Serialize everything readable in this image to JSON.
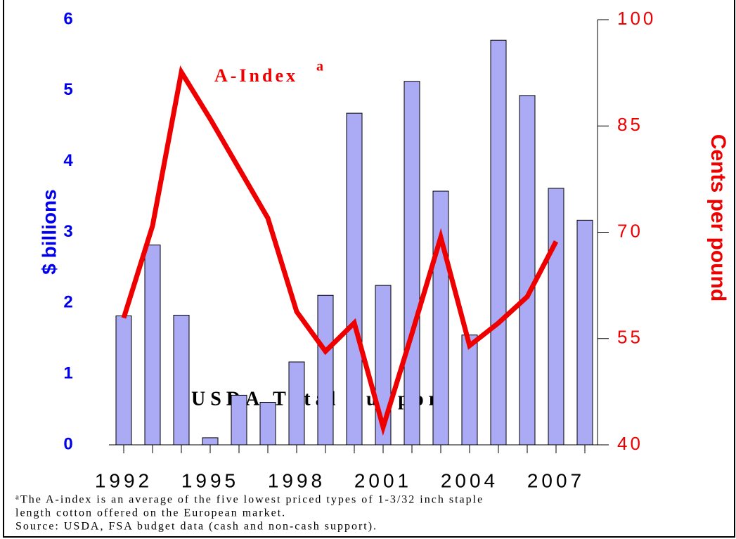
{
  "chart_data": {
    "type": "bar-line",
    "categories": [
      "1992",
      null,
      null,
      "1995",
      null,
      null,
      "1998",
      null,
      null,
      "2001",
      null,
      null,
      "2004",
      null,
      null,
      "2007",
      null
    ],
    "series": [
      {
        "name": "USDA Total Support",
        "type": "bar",
        "color": "#aaaaf5",
        "values": [
          1.82,
          2.82,
          1.83,
          0.1,
          0.7,
          0.6,
          1.17,
          2.11,
          4.68,
          2.25,
          5.13,
          3.58,
          1.55,
          5.71,
          4.93,
          3.62,
          3.17
        ]
      },
      {
        "name": "A-Index",
        "type": "line",
        "axis": "y2",
        "color": "#ee0000",
        "values": [
          57.9,
          70.9,
          92.6,
          86.0,
          79.0,
          72.0,
          58.8,
          53.2,
          57.2,
          42.5,
          55.7,
          69.3,
          54.0,
          57.2,
          60.9,
          68.7,
          null
        ]
      }
    ],
    "ylabel": "$ billions",
    "y2label": "Cents per pound",
    "ylim": [
      0,
      6
    ],
    "yticks": [
      0,
      1,
      2,
      3,
      4,
      5,
      6
    ],
    "y2lim": [
      40,
      100
    ],
    "y2ticks": [
      40,
      55,
      70,
      85,
      100
    ],
    "annotations": [
      {
        "text": "a"
      }
    ],
    "footnotes": [
      "The A-index is an average of the five lowest priced types of 1-3/32 inch staple",
      "length cotton offered on the European market.",
      "Source: USDA, FSA budget data (cash and non-cash support)."
    ]
  }
}
